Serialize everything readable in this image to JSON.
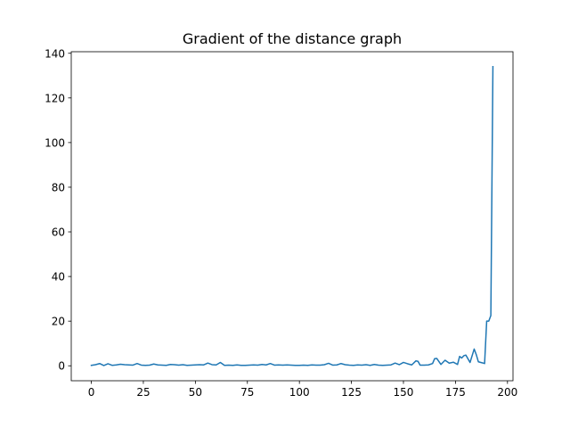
{
  "chart_data": {
    "type": "line",
    "title": "Gradient of the distance graph",
    "xlabel": "",
    "ylabel": "",
    "xlim": [
      -9.65,
      202.65
    ],
    "ylim": [
      -6.7,
      140.7
    ],
    "xticks": [
      0,
      25,
      50,
      75,
      100,
      125,
      150,
      175,
      200
    ],
    "yticks": [
      0,
      20,
      40,
      60,
      80,
      100,
      120,
      140
    ],
    "grid": false,
    "legend": "none",
    "colors": {
      "line": "#1f77b4",
      "axes": "#000000",
      "background": "#ffffff"
    },
    "series": [
      {
        "x": [
          0,
          2,
          4,
          6,
          8,
          10,
          12,
          14,
          16,
          18,
          20,
          22,
          24,
          26,
          28,
          30,
          32,
          34,
          36,
          38,
          40,
          42,
          44,
          46,
          48,
          50,
          52,
          54,
          56,
          58,
          60,
          62,
          64,
          66,
          68,
          70,
          72,
          74,
          76,
          78,
          80,
          82,
          84,
          86,
          88,
          90,
          92,
          94,
          96,
          98,
          100,
          102,
          104,
          106,
          108,
          110,
          112,
          114,
          116,
          118,
          120,
          122,
          124,
          126,
          128,
          130,
          132,
          134,
          136,
          138,
          140,
          142,
          144,
          146,
          148,
          150,
          152,
          154,
          156,
          157,
          158,
          160,
          162,
          164,
          165,
          166,
          168,
          170,
          172,
          174,
          176,
          177,
          178,
          179,
          180,
          182,
          184,
          185,
          186,
          188,
          189,
          190,
          191,
          192,
          193
        ],
        "y": [
          0.2,
          0.5,
          1.0,
          0.1,
          0.9,
          0.2,
          0.4,
          0.7,
          0.5,
          0.4,
          0.3,
          1.0,
          0.3,
          0.2,
          0.3,
          0.8,
          0.4,
          0.3,
          0.2,
          0.6,
          0.5,
          0.3,
          0.5,
          0.2,
          0.3,
          0.4,
          0.5,
          0.4,
          1.2,
          0.5,
          0.4,
          1.5,
          0.2,
          0.3,
          0.2,
          0.4,
          0.2,
          0.2,
          0.3,
          0.4,
          0.3,
          0.6,
          0.4,
          1.0,
          0.3,
          0.4,
          0.3,
          0.4,
          0.3,
          0.2,
          0.2,
          0.3,
          0.2,
          0.4,
          0.3,
          0.3,
          0.5,
          1.1,
          0.3,
          0.4,
          1.0,
          0.5,
          0.3,
          0.2,
          0.4,
          0.3,
          0.5,
          0.2,
          0.6,
          0.3,
          0.2,
          0.3,
          0.4,
          1.2,
          0.5,
          1.5,
          0.9,
          0.4,
          2.2,
          2.0,
          0.3,
          0.3,
          0.4,
          1.0,
          3.2,
          3.3,
          0.6,
          2.5,
          1.2,
          1.6,
          0.6,
          4.2,
          3.5,
          4.5,
          4.8,
          1.5,
          7.5,
          5.0,
          1.8,
          1.3,
          1.0,
          20.0,
          20.0,
          22.5,
          134.0
        ]
      }
    ]
  }
}
